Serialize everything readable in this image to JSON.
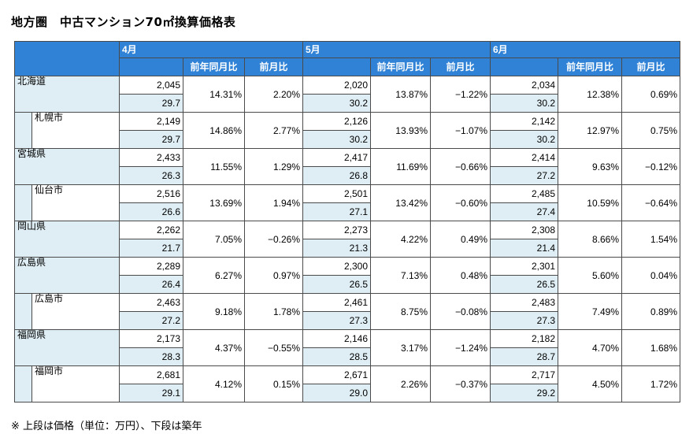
{
  "title": "地方圏　中古マンション70㎡換算価格表",
  "headers": {
    "months": [
      "4月",
      "5月",
      "6月"
    ],
    "yoy_label": "前年同月比",
    "mom_label": "前月比"
  },
  "rows": [
    {
      "name": "北海道",
      "type": "pref",
      "m": [
        {
          "price": "2,045",
          "age": "29.7",
          "yoy": "14.31%",
          "mom": "2.20%"
        },
        {
          "price": "2,020",
          "age": "30.2",
          "yoy": "13.87%",
          "mom": "−1.22%"
        },
        {
          "price": "2,034",
          "age": "30.2",
          "yoy": "12.38%",
          "mom": "0.69%"
        }
      ]
    },
    {
      "name": "札幌市",
      "type": "city",
      "m": [
        {
          "price": "2,149",
          "age": "29.7",
          "yoy": "14.86%",
          "mom": "2.77%"
        },
        {
          "price": "2,126",
          "age": "30.2",
          "yoy": "13.93%",
          "mom": "−1.07%"
        },
        {
          "price": "2,142",
          "age": "30.2",
          "yoy": "12.97%",
          "mom": "0.75%"
        }
      ]
    },
    {
      "name": "宮城県",
      "type": "pref",
      "m": [
        {
          "price": "2,433",
          "age": "26.3",
          "yoy": "11.55%",
          "mom": "1.29%"
        },
        {
          "price": "2,417",
          "age": "26.8",
          "yoy": "11.69%",
          "mom": "−0.66%"
        },
        {
          "price": "2,414",
          "age": "27.2",
          "yoy": "9.63%",
          "mom": "−0.12%"
        }
      ]
    },
    {
      "name": "仙台市",
      "type": "city",
      "m": [
        {
          "price": "2,516",
          "age": "26.6",
          "yoy": "13.69%",
          "mom": "1.94%"
        },
        {
          "price": "2,501",
          "age": "27.1",
          "yoy": "13.42%",
          "mom": "−0.60%"
        },
        {
          "price": "2,485",
          "age": "27.4",
          "yoy": "10.59%",
          "mom": "−0.64%"
        }
      ]
    },
    {
      "name": "岡山県",
      "type": "pref",
      "m": [
        {
          "price": "2,262",
          "age": "21.7",
          "yoy": "7.05%",
          "mom": "−0.26%"
        },
        {
          "price": "2,273",
          "age": "21.3",
          "yoy": "4.22%",
          "mom": "0.49%"
        },
        {
          "price": "2,308",
          "age": "21.4",
          "yoy": "8.66%",
          "mom": "1.54%"
        }
      ]
    },
    {
      "name": "広島県",
      "type": "pref",
      "m": [
        {
          "price": "2,289",
          "age": "26.4",
          "yoy": "6.27%",
          "mom": "0.97%"
        },
        {
          "price": "2,300",
          "age": "26.5",
          "yoy": "7.13%",
          "mom": "0.48%"
        },
        {
          "price": "2,301",
          "age": "26.5",
          "yoy": "5.60%",
          "mom": "0.04%"
        }
      ]
    },
    {
      "name": "広島市",
      "type": "city",
      "m": [
        {
          "price": "2,463",
          "age": "27.2",
          "yoy": "9.18%",
          "mom": "1.78%"
        },
        {
          "price": "2,461",
          "age": "27.3",
          "yoy": "8.75%",
          "mom": "−0.08%"
        },
        {
          "price": "2,483",
          "age": "27.3",
          "yoy": "7.49%",
          "mom": "0.89%"
        }
      ]
    },
    {
      "name": "福岡県",
      "type": "pref",
      "m": [
        {
          "price": "2,173",
          "age": "28.3",
          "yoy": "4.37%",
          "mom": "−0.55%"
        },
        {
          "price": "2,146",
          "age": "28.5",
          "yoy": "3.17%",
          "mom": "−1.24%"
        },
        {
          "price": "2,182",
          "age": "28.7",
          "yoy": "4.70%",
          "mom": "1.68%"
        }
      ]
    },
    {
      "name": "福岡市",
      "type": "city",
      "m": [
        {
          "price": "2,681",
          "age": "29.1",
          "yoy": "4.12%",
          "mom": "0.15%"
        },
        {
          "price": "2,671",
          "age": "29.0",
          "yoy": "2.26%",
          "mom": "−0.37%"
        },
        {
          "price": "2,717",
          "age": "29.2",
          "yoy": "4.50%",
          "mom": "1.72%"
        }
      ]
    }
  ],
  "note": "※ 上段は価格（単位：万円）、下段は築年",
  "colors": {
    "header": "#2f82d6",
    "light": "#dfeef4"
  }
}
